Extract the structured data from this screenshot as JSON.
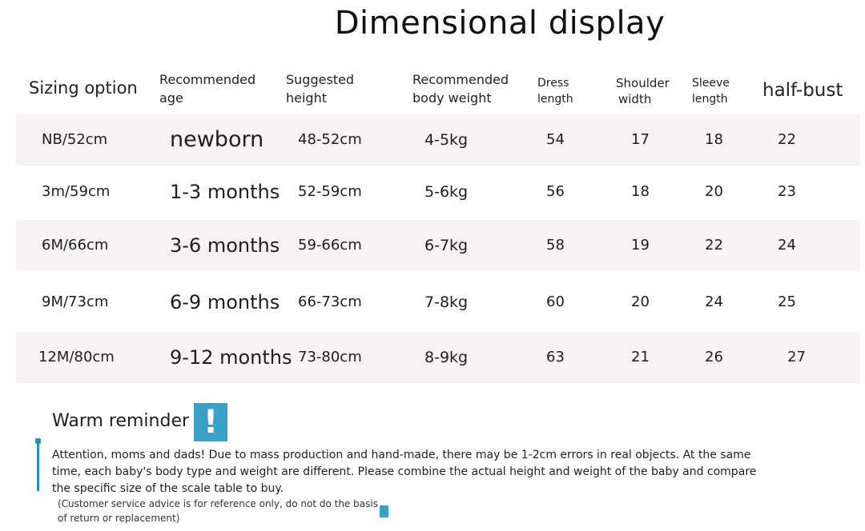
{
  "title": "Dimensional display",
  "headers": {
    "size": "Sizing option",
    "age": [
      "Recommended",
      "age"
    ],
    "height": [
      "Suggested",
      "height"
    ],
    "weight": [
      "Recommended",
      "body weight"
    ],
    "dress_length": [
      "Dress",
      "length"
    ],
    "shoulder": [
      "Shoulder",
      "width"
    ],
    "sleeve": [
      "Sleeve",
      "length"
    ],
    "half_bust": "half-bust"
  },
  "rows": [
    {
      "size": "NB/52cm",
      "age": "newborn",
      "height": "48-52cm",
      "weight": "4-5kg",
      "dress_length": "54",
      "shoulder": "17",
      "sleeve": "18",
      "half_bust": "22"
    },
    {
      "size": "3m/59cm",
      "age": "1-3 months",
      "height": "52-59cm",
      "weight": "5-6kg",
      "dress_length": "56",
      "shoulder": "18",
      "sleeve": "20",
      "half_bust": "23"
    },
    {
      "size": "6M/66cm",
      "age": "3-6 months",
      "height": "59-66cm",
      "weight": "6-7kg",
      "dress_length": "58",
      "shoulder": "19",
      "sleeve": "22",
      "half_bust": "24"
    },
    {
      "size": "9M/73cm",
      "age": "6-9 months",
      "height": "66-73cm",
      "weight": "7-8kg",
      "dress_length": "60",
      "shoulder": "20",
      "sleeve": "24",
      "half_bust": "25"
    },
    {
      "size": "12M/80cm",
      "age": "9-12 months",
      "height": "73-80cm",
      "weight": "8-9kg",
      "dress_length": "63",
      "shoulder": "21",
      "sleeve": "26",
      "half_bust": "27"
    }
  ],
  "reminder": {
    "title": "Warm reminder",
    "icon": "!",
    "text": "Attention, moms and dads! Due to mass production and hand-made, there may be 1-2cm errors in real objects. At the same time, each baby's body type and weight are different. Please combine the actual height and weight of the baby and compare the specific size of the scale table to buy.",
    "disclaimer": "(Customer service advice is for reference only, do not do the basis of return or replacement)"
  },
  "colors": {
    "row_shade": "#f7f2f3",
    "accent": "#3aa0c8"
  }
}
